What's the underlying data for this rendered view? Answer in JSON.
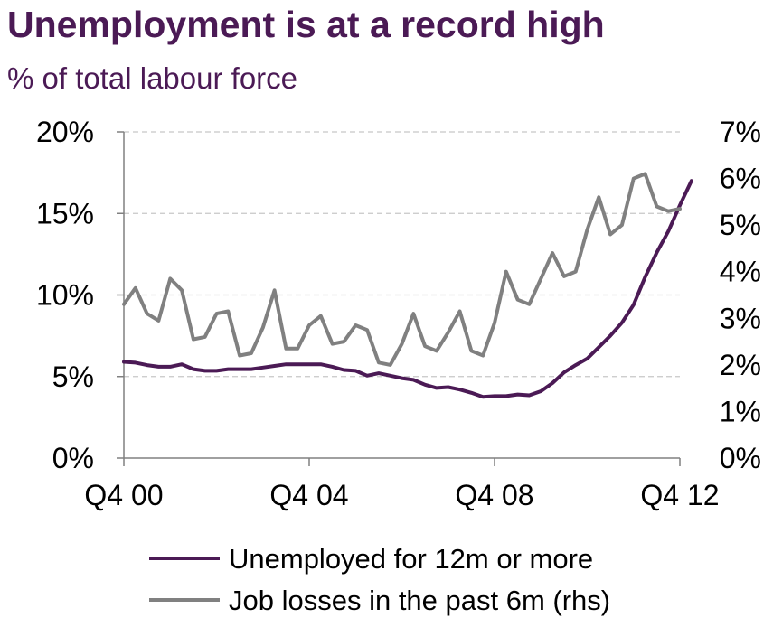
{
  "title": "Unemployment is at a record high",
  "subtitle": "% of total labour force",
  "colors": {
    "title": "#4b1a55",
    "series_long_term": "#4b1a55",
    "series_job_losses": "#808080",
    "grid": "#c8c8c8",
    "axis": "#808080"
  },
  "chart_data": {
    "type": "line",
    "title": "Unemployment is at a record high",
    "subtitle": "% of total labour force",
    "x_tick_labels": [
      "Q4 00",
      "Q4 04",
      "Q4 08",
      "Q4 12"
    ],
    "y_left": {
      "ylim": [
        0,
        20
      ],
      "ticks": [
        "0%",
        "5%",
        "10%",
        "15%",
        "20%"
      ]
    },
    "y_right": {
      "ylim": [
        0,
        7
      ],
      "ticks": [
        "0%",
        "1%",
        "2%",
        "3%",
        "4%",
        "5%",
        "6%",
        "7%"
      ]
    },
    "grid": "horizontal dashed",
    "legend_position": "bottom",
    "series": [
      {
        "name": "Unemployed for 12m or more",
        "axis": "left",
        "color": "#4b1a55",
        "x_start": "Q4 00",
        "frequency": "quarterly",
        "values": [
          5.9,
          5.85,
          5.7,
          5.6,
          5.6,
          5.75,
          5.45,
          5.35,
          5.35,
          5.45,
          5.45,
          5.45,
          5.55,
          5.65,
          5.75,
          5.75,
          5.75,
          5.75,
          5.6,
          5.4,
          5.35,
          5.05,
          5.2,
          5.05,
          4.9,
          4.8,
          4.5,
          4.3,
          4.35,
          4.2,
          4.0,
          3.75,
          3.8,
          3.8,
          3.9,
          3.85,
          4.1,
          4.6,
          5.25,
          5.7,
          6.1,
          6.8,
          7.5,
          8.3,
          9.4,
          11.1,
          12.6,
          13.9,
          15.5,
          17.0
        ]
      },
      {
        "name": "Job losses in the past 6m (rhs)",
        "axis": "right",
        "color": "#808080",
        "x_start": "Q4 00",
        "frequency": "quarterly",
        "values": [
          3.3,
          3.65,
          3.1,
          2.95,
          3.85,
          3.6,
          2.55,
          2.6,
          3.1,
          3.15,
          2.2,
          2.25,
          2.8,
          3.6,
          2.35,
          2.35,
          2.85,
          3.05,
          2.45,
          2.5,
          2.85,
          2.75,
          2.05,
          2.0,
          2.45,
          3.1,
          2.4,
          2.3,
          2.7,
          3.15,
          2.3,
          2.2,
          2.9,
          4.0,
          3.4,
          3.3,
          3.85,
          4.4,
          3.9,
          4.0,
          4.9,
          5.6,
          4.8,
          5.0,
          6.0,
          6.1,
          5.4,
          5.3,
          5.35
        ]
      }
    ]
  }
}
